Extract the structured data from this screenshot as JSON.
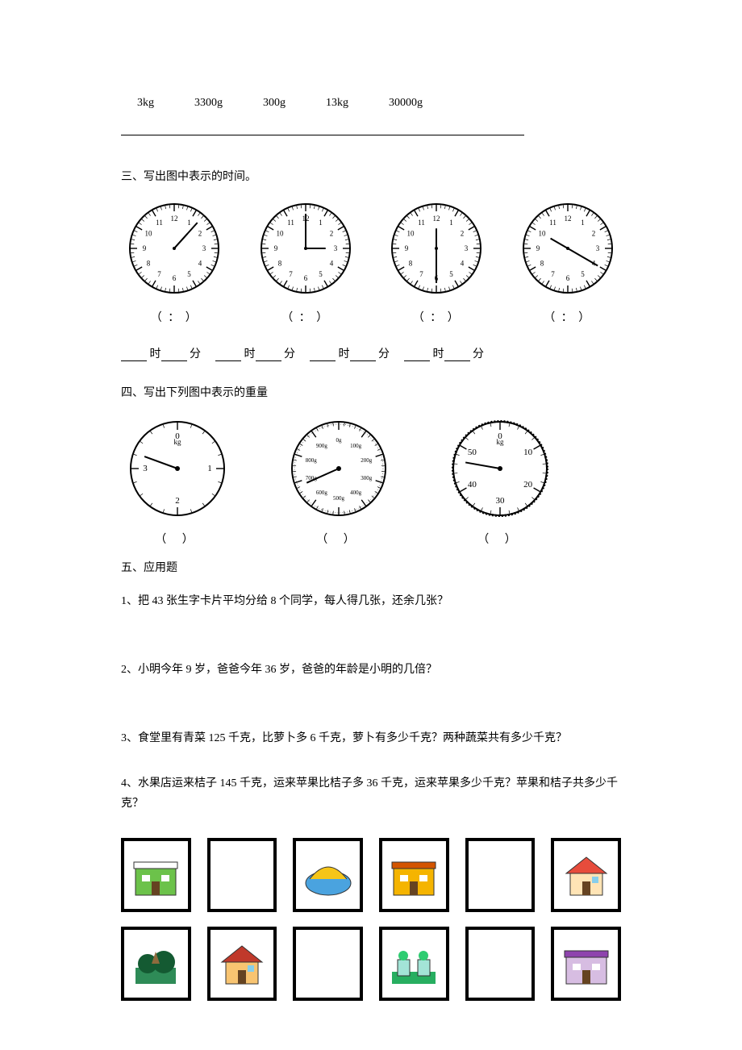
{
  "weights_line": {
    "items": [
      "3kg",
      "3300g",
      "300g",
      "13kg",
      "30000g"
    ]
  },
  "section3": {
    "title": "三、写出图中表示的时间。",
    "clocks": [
      {
        "hour_angle": 42,
        "minute_angle": 42
      },
      {
        "hour_angle": 90,
        "minute_angle": 0
      },
      {
        "hour_angle": 0,
        "minute_angle": 180
      },
      {
        "hour_angle": 300,
        "minute_angle": 120
      }
    ],
    "digital_template": "（    ：    ）",
    "han_hour": "时",
    "han_min": "分",
    "clock_style": {
      "radius": 55,
      "stroke": "#000000",
      "fill": "#ffffff",
      "tick_major_len": 8,
      "tick_minor_len": 4,
      "number_font_size": 9,
      "hand_stroke_width": 2
    }
  },
  "section4": {
    "title": "四、写出下列图中表示的重量",
    "scales": [
      {
        "type": "kg4",
        "labels": [
          "0",
          "1",
          "2",
          "3"
        ],
        "sublabel": "kg",
        "needle_angle": 290,
        "style": {
          "stroke": "#000000"
        }
      },
      {
        "type": "g1000",
        "labels": [
          "0g",
          "100g",
          "200g",
          "300g",
          "400g",
          "500g",
          "600g",
          "700g",
          "800g",
          "900g"
        ],
        "needle_angle": 246,
        "style": {
          "stroke": "#000000"
        }
      },
      {
        "type": "kg60",
        "labels": [
          "0",
          "10",
          "20",
          "30",
          "40",
          "50"
        ],
        "sublabel": "kg",
        "needle_angle": 280,
        "style": {
          "stroke": "#000000"
        }
      }
    ],
    "blank_template": "（          ）"
  },
  "section5": {
    "title": "五、应用题",
    "questions": [
      "1、把 43 张生字卡片平均分给 8 个同学，每人得几张，还余几张？",
      "2、小明今年 9 岁，爸爸今年 36 岁，爸爸的年龄是小明的几倍？",
      "3、食堂里有青菜 125 千克，比萝卜多 6 千克，萝卜有多少千克？两种蔬菜共有多少千克？",
      "4、水果店运来桔子 145 千克，运来苹果比桔子多 36 千克，运来苹果多少千克？苹果和桔子共多少千克？"
    ]
  },
  "buildings_row1": [
    {
      "kind": "shop",
      "colors": {
        "wall": "#6cc24a",
        "roof": "#ffffff",
        "sign": "#ff6600"
      }
    },
    {
      "kind": "empty"
    },
    {
      "kind": "stadium",
      "colors": {
        "wall": "#4aa3df",
        "roof": "#f5c518"
      }
    },
    {
      "kind": "office",
      "colors": {
        "wall": "#f5b400",
        "roof": "#d35400"
      }
    },
    {
      "kind": "empty"
    },
    {
      "kind": "house",
      "colors": {
        "wall": "#ffe4b5",
        "roof": "#e74c3c"
      }
    }
  ],
  "buildings_row2": [
    {
      "kind": "park",
      "colors": {
        "wall": "#2e8b57",
        "roof": "#145a32"
      }
    },
    {
      "kind": "house2",
      "colors": {
        "wall": "#f8c471",
        "roof": "#c0392b"
      }
    },
    {
      "kind": "empty"
    },
    {
      "kind": "farm",
      "colors": {
        "wall": "#a3e4d7",
        "roof": "#27ae60"
      }
    },
    {
      "kind": "empty"
    },
    {
      "kind": "mall",
      "colors": {
        "wall": "#d7bde2",
        "roof": "#8e44ad"
      }
    }
  ]
}
